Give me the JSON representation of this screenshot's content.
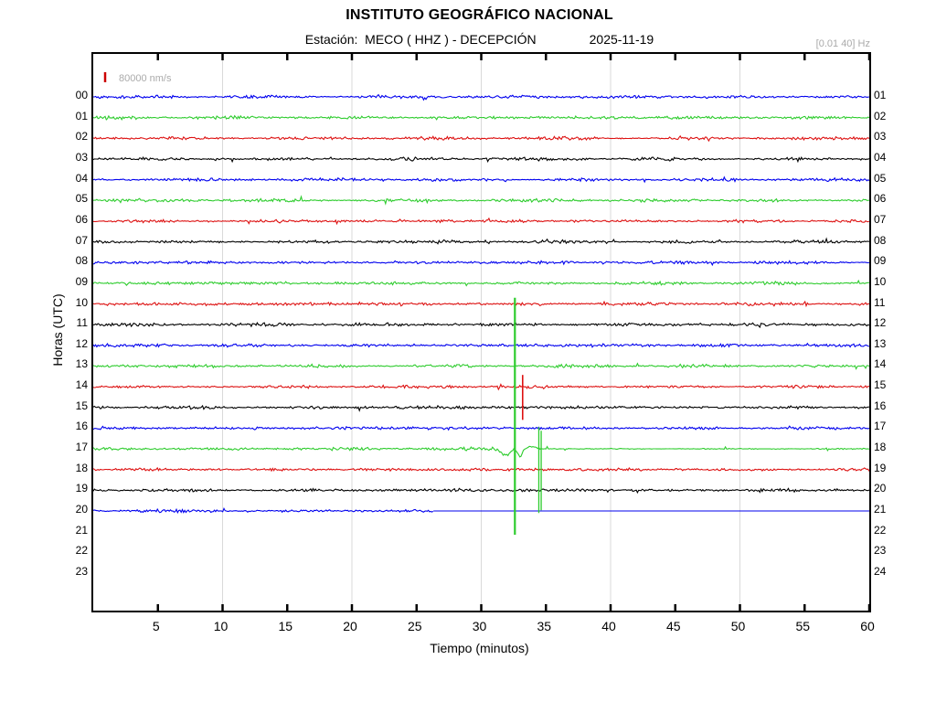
{
  "header": {
    "title": "INSTITUTO GEOGRÁFICO NACIONAL",
    "station_label": "Estación:",
    "station_value": "MECO ( HHZ ) - DECEPCIÓN",
    "date": "2025-11-19",
    "filter_band": "[0.01 40] Hz"
  },
  "chart_data": {
    "type": "line",
    "subtype": "helicorder-seismogram",
    "title": "INSTITUTO GEOGRÁFICO NACIONAL",
    "station": "MECO ( HHZ ) - DECEPCIÓN",
    "channel": "HHZ",
    "date": "2025-11-19",
    "filter_band_hz": "[0.01 40] Hz",
    "scale_label": "80000 nm/s",
    "scale_marker_color": "#cc0000",
    "scale_text_color": "#aaaaaa",
    "xlabel": "Tiempo (minutos)",
    "ylabel": "Horas (UTC)",
    "x_range_minutes": [
      0,
      60
    ],
    "x_ticks": [
      5,
      10,
      15,
      20,
      25,
      30,
      35,
      40,
      45,
      50,
      55,
      60
    ],
    "gridline_minutes": [
      10,
      20,
      30,
      40,
      50
    ],
    "gridline_color": "#d9d9d9",
    "left_hour_labels": [
      "00",
      "01",
      "02",
      "03",
      "04",
      "05",
      "06",
      "07",
      "08",
      "09",
      "10",
      "11",
      "12",
      "13",
      "14",
      "15",
      "16",
      "17",
      "18",
      "19",
      "20",
      "21",
      "22",
      "23"
    ],
    "right_hour_labels": [
      "01",
      "02",
      "03",
      "04",
      "05",
      "06",
      "07",
      "08",
      "09",
      "10",
      "11",
      "12",
      "13",
      "14",
      "15",
      "16",
      "17",
      "18",
      "19",
      "20",
      "21",
      "22",
      "23",
      "24"
    ],
    "trace_color_cycle": [
      "#0000ee",
      "#2ecc2e",
      "#dd1111",
      "#000000"
    ],
    "hours_with_data": [
      0,
      1,
      2,
      3,
      4,
      5,
      6,
      7,
      8,
      9,
      10,
      11,
      12,
      13,
      14,
      15,
      16,
      17,
      18,
      19,
      20
    ],
    "empty_hours": [
      21,
      22,
      23
    ],
    "last_trace": {
      "hour": 20,
      "data_end_minute": 26.3,
      "flat_line_to_minute": 60
    },
    "events": [
      {
        "hour": 17,
        "minute": 32.6,
        "kind": "large clipped spike",
        "up_rows": 7.3,
        "down_rows": 4.15,
        "width": 2.2
      },
      {
        "hour": 17,
        "minute": 34.45,
        "kind": "double spike",
        "up_rows": 1.05,
        "down_rows": 3.1,
        "width": 1.3,
        "double": true
      },
      {
        "hour": 14,
        "minute": 33.2,
        "kind": "spike",
        "up_rows": 0.57,
        "down_rows": 1.6,
        "width": 1.6
      }
    ],
    "disturbance": {
      "hour": 17,
      "start_minute": 31.0,
      "end_minute": 34.4,
      "quiet_after_minute": 34.6
    }
  }
}
